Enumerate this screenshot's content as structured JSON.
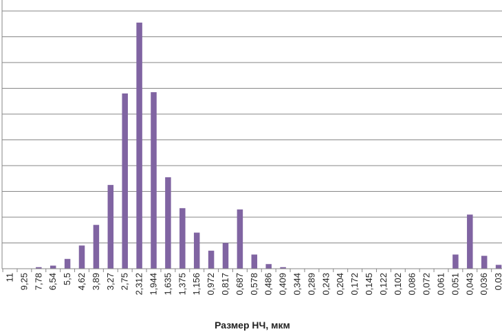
{
  "chart_data": {
    "type": "bar",
    "title": "",
    "xlabel": "Размер НЧ, мкм",
    "ylabel": "",
    "categories": [
      "11",
      "9,25",
      "7,78",
      "6,54",
      "5,5",
      "4,62",
      "3,89",
      "3,27",
      "2,75",
      "2,312",
      "1,944",
      "1,635",
      "1,375",
      "1,156",
      "0,972",
      "0,817",
      "0,687",
      "0,578",
      "0,486",
      "0,409",
      "0,344",
      "0,289",
      "0,243",
      "0,204",
      "0,172",
      "0,145",
      "0,122",
      "0,102",
      "0,086",
      "0,072",
      "0,061",
      "0,051",
      "0,043",
      "0,036",
      "0,03"
    ],
    "values": [
      0,
      0,
      0.6,
      1.2,
      3.8,
      9,
      17,
      32.5,
      68,
      95.5,
      68.5,
      35.5,
      23.5,
      14,
      7,
      10,
      23,
      5.5,
      1.8,
      0.6,
      0,
      0,
      0,
      0,
      0,
      0,
      0,
      0,
      0,
      0,
      0,
      5.5,
      21,
      5,
      1.5
    ],
    "ylim": [
      0,
      100
    ],
    "yticks": [
      0,
      10,
      20,
      30,
      40,
      50,
      60,
      70,
      80,
      90,
      100
    ],
    "y_tick_labels_shown": false,
    "grid": true,
    "bar_color": "#8064A2",
    "grid_color": "#868686"
  }
}
